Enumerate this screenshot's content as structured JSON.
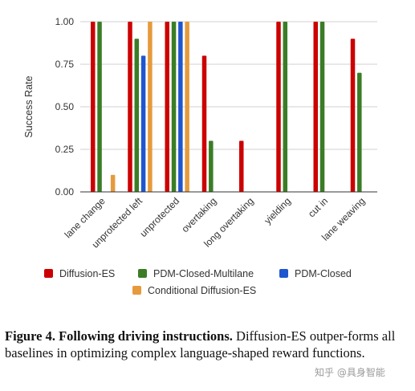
{
  "chart_data": {
    "type": "bar",
    "ylabel": "Success Rate",
    "xlabel": "",
    "ylim": [
      0,
      1
    ],
    "yticks": [
      "0.00",
      "0.25",
      "0.50",
      "0.75",
      "1.00"
    ],
    "grid": "horizontal",
    "legend_position": "bottom",
    "categories": [
      "lane change",
      "unprotected left",
      "unprotected",
      "overtaking",
      "long overtaking",
      "yielding",
      "cut in",
      "lane weaving"
    ],
    "series": [
      {
        "name": "Diffusion-ES",
        "color": "#cc0000",
        "values": [
          1.0,
          1.0,
          1.0,
          0.8,
          0.3,
          1.0,
          1.0,
          0.9
        ]
      },
      {
        "name": "PDM-Closed-Multilane",
        "color": "#3a7d26",
        "values": [
          1.0,
          0.9,
          1.0,
          0.3,
          0.0,
          1.0,
          1.0,
          0.7
        ]
      },
      {
        "name": "PDM-Closed",
        "color": "#1f56cf",
        "values": [
          0.0,
          0.8,
          1.0,
          0.0,
          0.0,
          0.0,
          0.0,
          0.0
        ]
      },
      {
        "name": "Conditional Diffusion-ES",
        "color": "#e69a3c",
        "values": [
          0.1,
          1.0,
          1.0,
          0.0,
          0.0,
          0.0,
          0.0,
          0.0
        ]
      }
    ]
  },
  "caption": {
    "prefix": "Figure 4.",
    "title": "Following driving instructions.",
    "body": "Diffusion-ES outper-forms all baselines in optimizing complex language-shaped reward functions."
  },
  "watermark": "知乎 @具身智能"
}
